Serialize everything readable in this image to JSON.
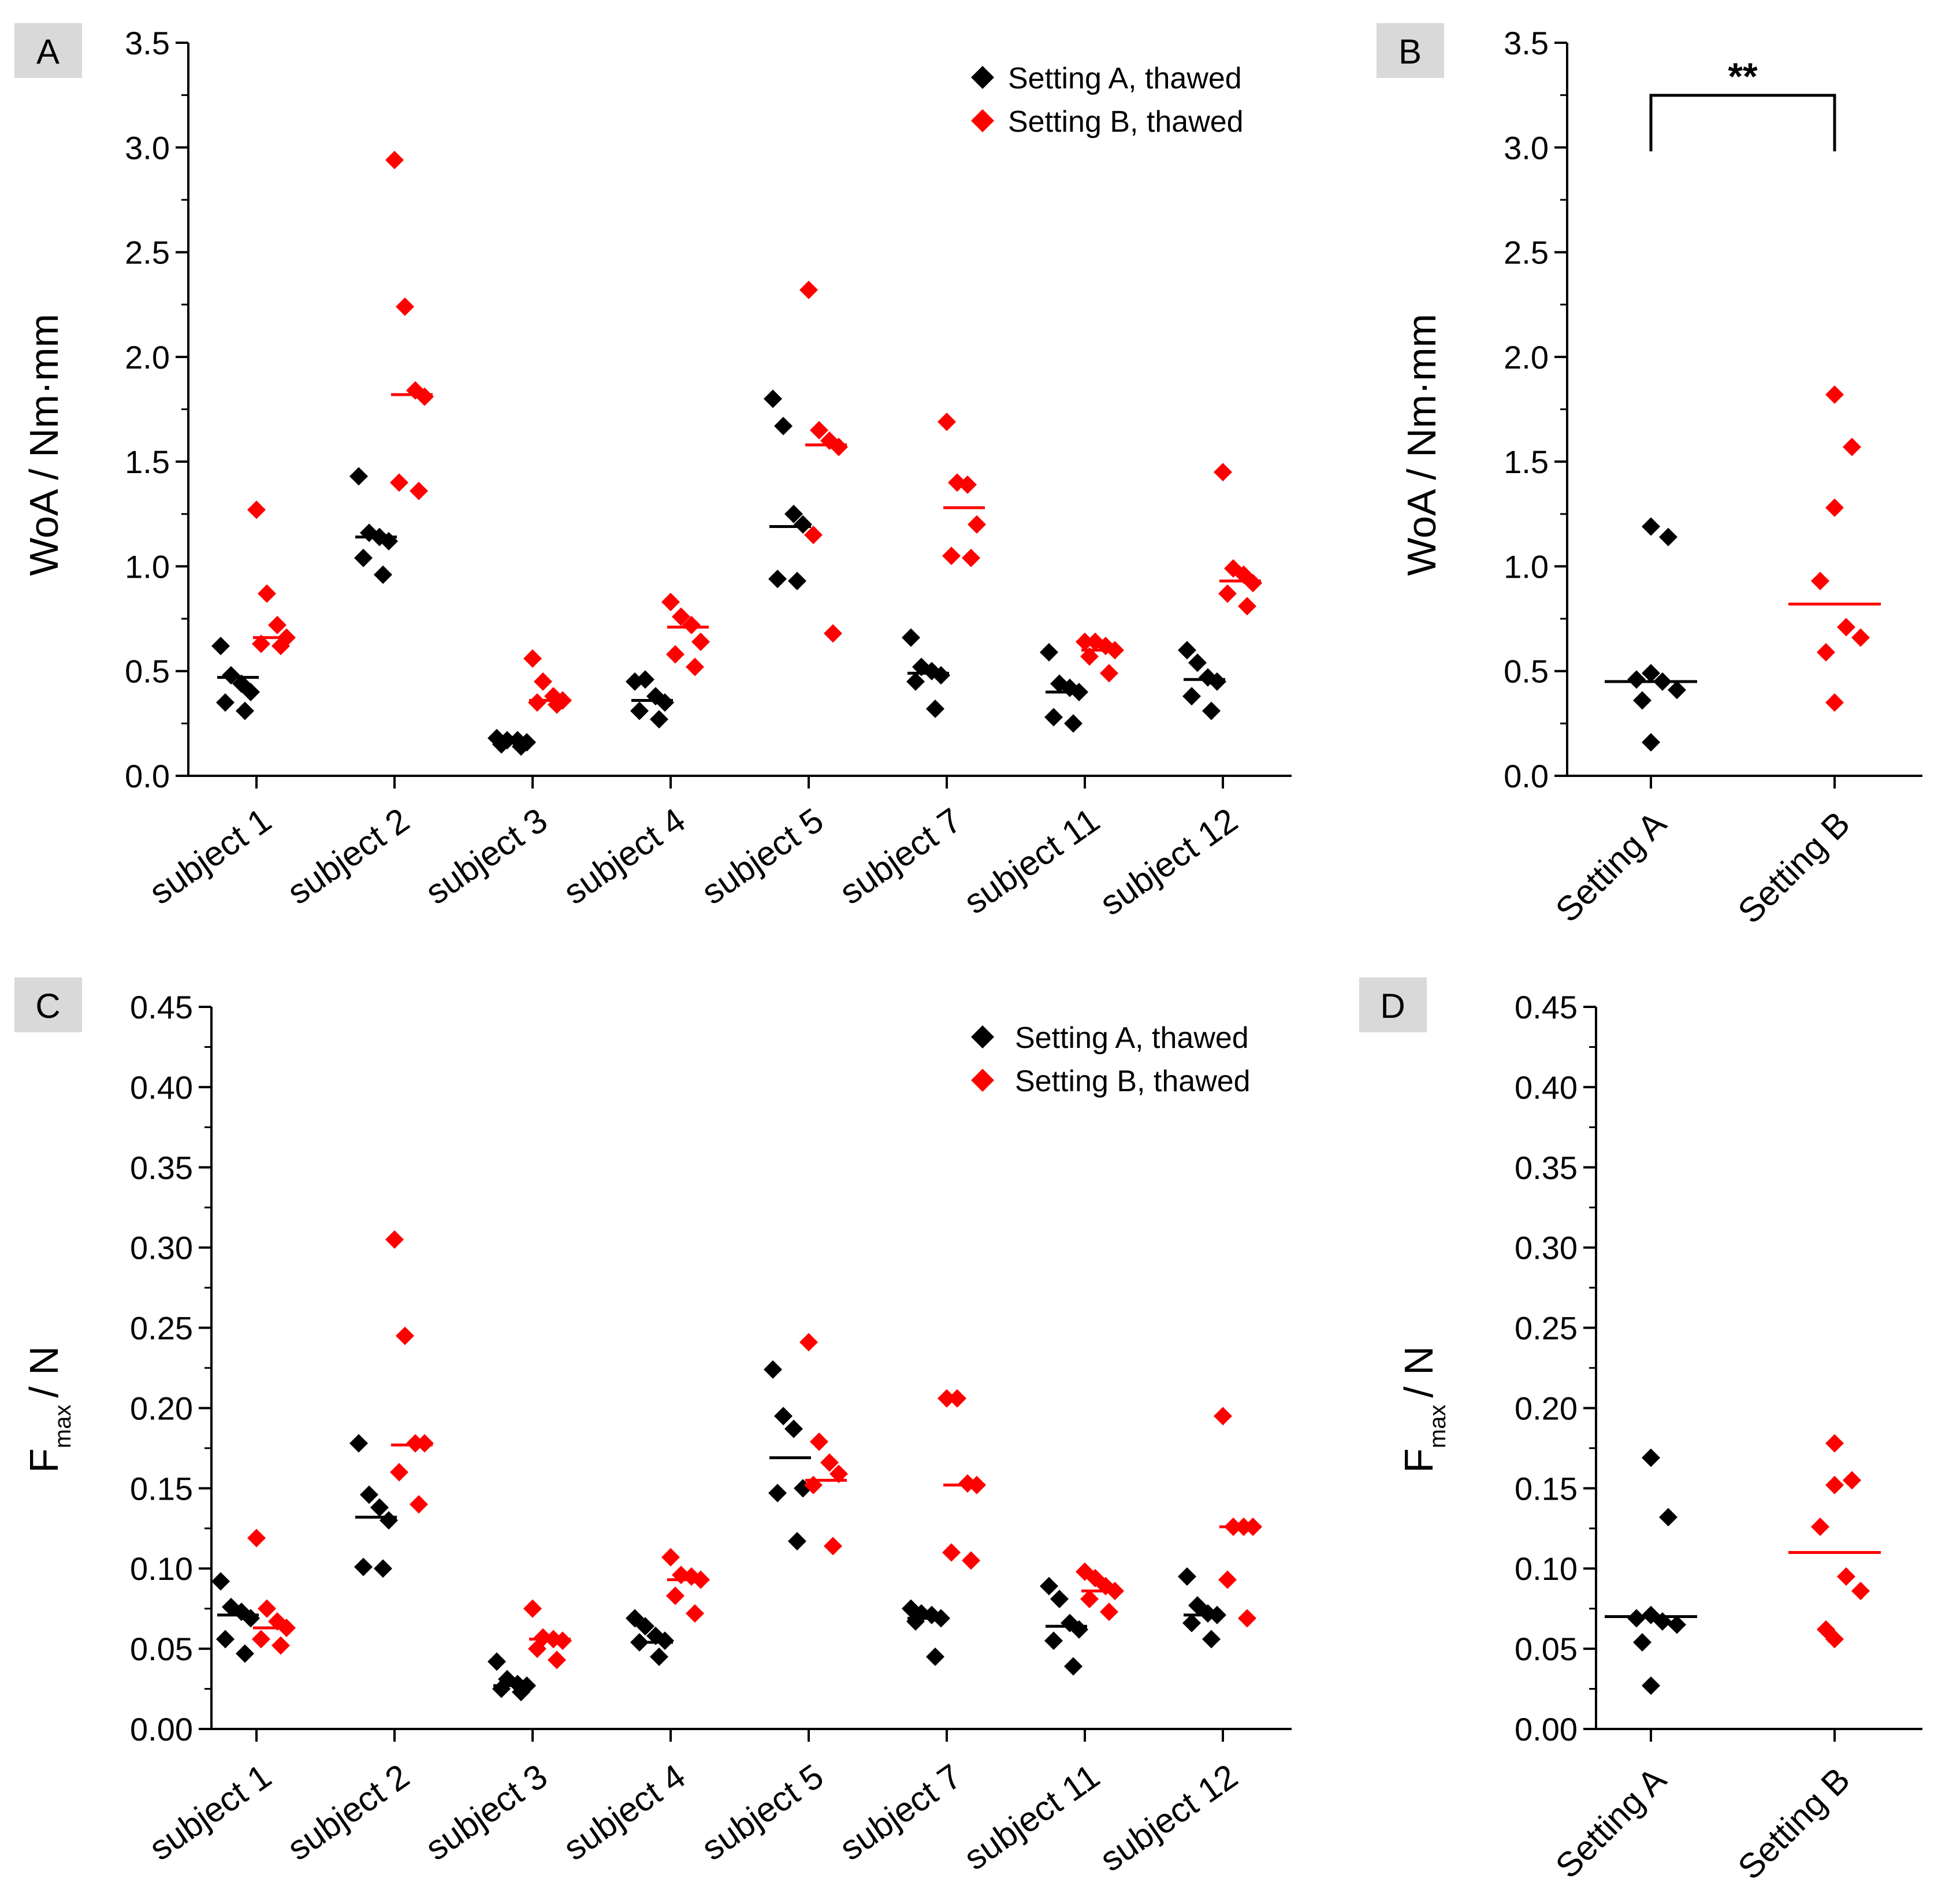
{
  "colors": {
    "setting_a": "#000000",
    "setting_b": "#ff0000",
    "label_box": "#d9d9d9"
  },
  "chart_data": [
    {
      "panel": "A",
      "type": "scatter",
      "ylabel": "WoA / Nm·mm",
      "ylim": [
        0,
        3.5
      ],
      "yticks": [
        "0.0",
        "0.5",
        "1.0",
        "1.5",
        "2.0",
        "2.5",
        "3.0",
        "3.5"
      ],
      "categories": [
        "subject 1",
        "subject 2",
        "subject 3",
        "subject 4",
        "subject 5",
        "subject 7",
        "subject 11",
        "subject 12"
      ],
      "legend": [
        "Setting A, thawed",
        "Setting B, thawed"
      ],
      "series": [
        {
          "name": "Setting A, thawed",
          "points": [
            [
              [
                0.62,
                0.48,
                0.44,
                0.4,
                0.35,
                0.31
              ],
              [
                0.47
              ]
            ],
            [
              [
                1.43,
                1.16,
                1.14,
                1.12,
                1.04,
                0.96
              ],
              [
                1.14
              ]
            ],
            [
              [
                0.18,
                0.17,
                0.17,
                0.16,
                0.15,
                0.14
              ],
              [
                0.16
              ]
            ],
            [
              [
                0.45,
                0.46,
                0.38,
                0.35,
                0.31,
                0.27
              ],
              [
                0.36
              ]
            ],
            [
              [
                1.8,
                1.67,
                1.25,
                1.2,
                0.94,
                0.93
              ],
              [
                1.19
              ]
            ],
            [
              [
                0.66,
                0.52,
                0.5,
                0.48,
                0.45,
                0.32
              ],
              [
                0.49
              ]
            ],
            [
              [
                0.59,
                0.44,
                0.42,
                0.4,
                0.28,
                0.25
              ],
              [
                0.4
              ]
            ],
            [
              [
                0.6,
                0.54,
                0.47,
                0.45,
                0.38,
                0.31
              ],
              [
                0.46
              ]
            ]
          ]
        },
        {
          "name": "Setting B, thawed",
          "points": [
            [
              [
                1.27,
                0.87,
                0.72,
                0.66,
                0.63,
                0.62
              ],
              [
                0.66
              ]
            ],
            [
              [
                2.94,
                2.24,
                1.84,
                1.81,
                1.4,
                1.36
              ],
              [
                1.82
              ]
            ],
            [
              [
                0.56,
                0.45,
                0.38,
                0.36,
                0.35,
                0.34
              ],
              [
                0.36
              ]
            ],
            [
              [
                0.83,
                0.76,
                0.72,
                0.64,
                0.58,
                0.52
              ],
              [
                0.71
              ]
            ],
            [
              [
                2.32,
                1.65,
                1.6,
                1.57,
                1.15,
                0.68
              ],
              [
                1.58
              ]
            ],
            [
              [
                1.69,
                1.4,
                1.39,
                1.2,
                1.05,
                1.04
              ],
              [
                1.28
              ]
            ],
            [
              [
                0.64,
                0.64,
                0.62,
                0.6,
                0.57,
                0.49
              ],
              [
                0.6
              ]
            ],
            [
              [
                1.45,
                0.99,
                0.96,
                0.92,
                0.87,
                0.81
              ],
              [
                0.93
              ]
            ]
          ]
        }
      ]
    },
    {
      "panel": "B",
      "type": "scatter",
      "ylabel": "WoA / Nm·mm",
      "ylim": [
        0,
        3.5
      ],
      "yticks": [
        "0.0",
        "0.5",
        "1.0",
        "1.5",
        "2.0",
        "2.5",
        "3.0",
        "3.5"
      ],
      "categories": [
        "Setting A",
        "Setting B"
      ],
      "significance": "**",
      "series": [
        {
          "name": "Setting A",
          "values": [
            1.19,
            1.14,
            0.49,
            0.46,
            0.45,
            0.41,
            0.36,
            0.16
          ],
          "median": 0.45
        },
        {
          "name": "Setting B",
          "values": [
            1.82,
            1.57,
            1.28,
            0.93,
            0.71,
            0.66,
            0.59,
            0.35
          ],
          "median": 0.82
        }
      ]
    },
    {
      "panel": "C",
      "type": "scatter",
      "ylabel_main": "F",
      "ylabel_sub": "max",
      "ylabel_unit": "/ N",
      "ylim": [
        0,
        0.45
      ],
      "yticks": [
        "0.00",
        "0.05",
        "0.10",
        "0.15",
        "0.20",
        "0.25",
        "0.30",
        "0.35",
        "0.40",
        "0.45"
      ],
      "categories": [
        "subject 1",
        "subject 2",
        "subject 3",
        "subject 4",
        "subject 5",
        "subject 7",
        "subject 11",
        "subject 12"
      ],
      "legend": [
        "Setting A, thawed",
        "Setting B, thawed"
      ],
      "series": [
        {
          "name": "Setting A, thawed",
          "points": [
            [
              [
                0.092,
                0.076,
                0.073,
                0.069,
                0.056,
                0.047
              ],
              [
                0.071
              ]
            ],
            [
              [
                0.178,
                0.146,
                0.138,
                0.13,
                0.101,
                0.1
              ],
              [
                0.132
              ]
            ],
            [
              [
                0.042,
                0.031,
                0.028,
                0.027,
                0.025,
                0.023
              ],
              [
                0.027
              ]
            ],
            [
              [
                0.069,
                0.064,
                0.058,
                0.055,
                0.054,
                0.045
              ],
              [
                0.054
              ]
            ],
            [
              [
                0.224,
                0.195,
                0.187,
                0.15,
                0.147,
                0.117
              ],
              [
                0.169
              ]
            ],
            [
              [
                0.075,
                0.072,
                0.071,
                0.069,
                0.067,
                0.045
              ],
              [
                0.069
              ]
            ],
            [
              [
                0.089,
                0.081,
                0.066,
                0.062,
                0.055,
                0.039
              ],
              [
                0.064
              ]
            ],
            [
              [
                0.095,
                0.077,
                0.072,
                0.071,
                0.066,
                0.056
              ],
              [
                0.071
              ]
            ]
          ]
        },
        {
          "name": "Setting B, thawed",
          "points": [
            [
              [
                0.119,
                0.075,
                0.067,
                0.063,
                0.056,
                0.052
              ],
              [
                0.063
              ]
            ],
            [
              [
                0.305,
                0.245,
                0.178,
                0.178,
                0.16,
                0.14
              ],
              [
                0.177
              ]
            ],
            [
              [
                0.075,
                0.057,
                0.056,
                0.055,
                0.05,
                0.043
              ],
              [
                0.056
              ]
            ],
            [
              [
                0.107,
                0.096,
                0.095,
                0.093,
                0.083,
                0.072
              ],
              [
                0.093
              ]
            ],
            [
              [
                0.241,
                0.179,
                0.166,
                0.159,
                0.152,
                0.114
              ],
              [
                0.155
              ]
            ],
            [
              [
                0.206,
                0.206,
                0.153,
                0.152,
                0.11,
                0.105
              ],
              [
                0.152
              ]
            ],
            [
              [
                0.098,
                0.094,
                0.089,
                0.086,
                0.081,
                0.073
              ],
              [
                0.086
              ]
            ],
            [
              [
                0.195,
                0.126,
                0.126,
                0.126,
                0.093,
                0.069
              ],
              [
                0.126
              ]
            ]
          ]
        }
      ]
    },
    {
      "panel": "D",
      "type": "scatter",
      "ylabel_main": "F",
      "ylabel_sub": "max",
      "ylabel_unit": "/ N",
      "ylim": [
        0,
        0.45
      ],
      "yticks": [
        "0.00",
        "0.05",
        "0.10",
        "0.15",
        "0.20",
        "0.25",
        "0.30",
        "0.35",
        "0.40",
        "0.45"
      ],
      "categories": [
        "Setting A",
        "Setting B"
      ],
      "series": [
        {
          "name": "Setting A",
          "values": [
            0.169,
            0.132,
            0.071,
            0.069,
            0.067,
            0.065,
            0.054,
            0.027
          ],
          "median": 0.07
        },
        {
          "name": "Setting B",
          "values": [
            0.178,
            0.155,
            0.152,
            0.126,
            0.095,
            0.086,
            0.062,
            0.056
          ],
          "median": 0.11
        }
      ]
    }
  ]
}
